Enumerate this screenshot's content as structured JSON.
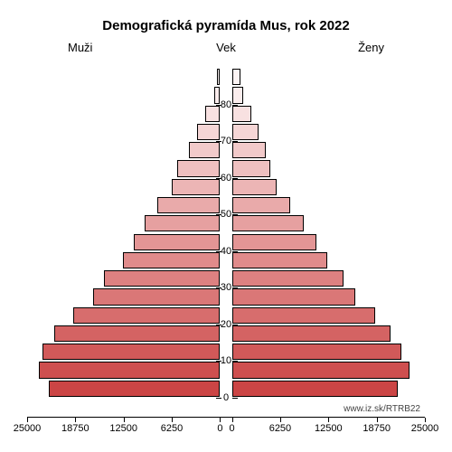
{
  "title": "Demografická pyramída Mus, rok 2022",
  "column_labels": {
    "left": "Muži",
    "center": "Vek",
    "right": "Ženy"
  },
  "attribution": "www.iz.sk/RTRB22",
  "chart": {
    "type": "population-pyramid",
    "x_max": 25000,
    "x_ticks": [
      25000,
      18750,
      12500,
      6250,
      0
    ],
    "y_ticks": [
      0,
      10,
      20,
      30,
      40,
      50,
      60,
      70,
      80
    ],
    "y_max": 90,
    "background_color": "#ffffff",
    "axis_color": "#000000",
    "label_fontsize": 13,
    "title_fontsize": 15,
    "tick_fontsize": 11,
    "age_groups": [
      {
        "age": 85,
        "male": 400,
        "female": 1050,
        "color_male": "#fdf4f4",
        "color_female": "#fdf4f4"
      },
      {
        "age": 80,
        "male": 700,
        "female": 1500,
        "color_male": "#fbeded",
        "color_female": "#fbeded"
      },
      {
        "age": 75,
        "male": 1900,
        "female": 2500,
        "color_male": "#f8e1e1",
        "color_female": "#f8e1e1"
      },
      {
        "age": 70,
        "male": 3000,
        "female": 3400,
        "color_male": "#f5d6d6",
        "color_female": "#f5d6d6"
      },
      {
        "age": 65,
        "male": 4000,
        "female": 4400,
        "color_male": "#f2caca",
        "color_female": "#f2caca"
      },
      {
        "age": 60,
        "male": 5600,
        "female": 5000,
        "color_male": "#efc0c0",
        "color_female": "#efc0c0"
      },
      {
        "age": 55,
        "male": 6200,
        "female": 5800,
        "color_male": "#ecb5b5",
        "color_female": "#ecb5b5"
      },
      {
        "age": 50,
        "male": 8100,
        "female": 7500,
        "color_male": "#e9aaaa",
        "color_female": "#e9aaaa"
      },
      {
        "age": 45,
        "male": 9800,
        "female": 9300,
        "color_male": "#e6a0a0",
        "color_female": "#e6a0a0"
      },
      {
        "age": 40,
        "male": 11200,
        "female": 11000,
        "color_male": "#e39595",
        "color_female": "#e39595"
      },
      {
        "age": 35,
        "male": 12600,
        "female": 12300,
        "color_male": "#e08b8b",
        "color_female": "#e08b8b"
      },
      {
        "age": 30,
        "male": 15000,
        "female": 14400,
        "color_male": "#dd8181",
        "color_female": "#dd8181"
      },
      {
        "age": 25,
        "male": 16400,
        "female": 16000,
        "color_male": "#da7777",
        "color_female": "#da7777"
      },
      {
        "age": 20,
        "male": 19000,
        "female": 18500,
        "color_male": "#d76d6d",
        "color_female": "#d76d6d"
      },
      {
        "age": 15,
        "male": 21500,
        "female": 20500,
        "color_male": "#d46363",
        "color_female": "#d46363"
      },
      {
        "age": 10,
        "male": 23000,
        "female": 22000,
        "color_male": "#d15959",
        "color_female": "#d15959"
      },
      {
        "age": 5,
        "male": 23500,
        "female": 23000,
        "color_male": "#ce4f4f",
        "color_female": "#ce4f4f"
      },
      {
        "age": 0,
        "male": 22200,
        "female": 21500,
        "color_male": "#cb4545",
        "color_female": "#cb4545"
      }
    ]
  }
}
